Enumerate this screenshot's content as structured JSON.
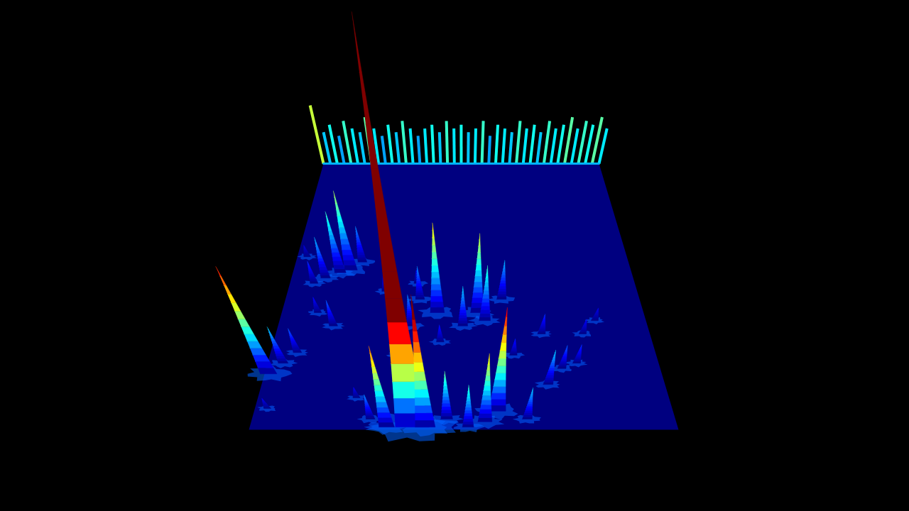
{
  "chart_data": {
    "type": "surface3d",
    "tick_labels": false,
    "xlim": [
      0,
      1
    ],
    "ylim": [
      0,
      1
    ],
    "zlim": [
      0,
      1
    ],
    "color_range": [
      0,
      0.45
    ],
    "peaks": [
      {
        "x": 0.38,
        "y": 0.01,
        "z": 1.0
      },
      {
        "x": 0.01,
        "y": 0.21,
        "z": 0.39
      },
      {
        "x": 0.04,
        "y": 0.25,
        "z": 0.15
      },
      {
        "x": 0.07,
        "y": 0.29,
        "z": 0.1
      },
      {
        "x": 0.17,
        "y": 0.6,
        "z": 0.25
      },
      {
        "x": 0.14,
        "y": 0.59,
        "z": 0.2
      },
      {
        "x": 0.1,
        "y": 0.57,
        "z": 0.14
      },
      {
        "x": 0.2,
        "y": 0.63,
        "z": 0.12
      },
      {
        "x": 0.07,
        "y": 0.55,
        "z": 0.08
      },
      {
        "x": 0.15,
        "y": 0.39,
        "z": 0.1
      },
      {
        "x": 0.43,
        "y": 0.44,
        "z": 0.3
      },
      {
        "x": 0.54,
        "y": 0.44,
        "z": 0.27
      },
      {
        "x": 0.56,
        "y": 0.41,
        "z": 0.2
      },
      {
        "x": 0.61,
        "y": 0.49,
        "z": 0.14
      },
      {
        "x": 0.36,
        "y": 0.39,
        "z": 0.12
      },
      {
        "x": 0.32,
        "y": 0.01,
        "z": 0.35
      },
      {
        "x": 0.41,
        "y": 0.01,
        "z": 0.51
      },
      {
        "x": 0.58,
        "y": 0.07,
        "z": 0.41
      },
      {
        "x": 0.55,
        "y": 0.03,
        "z": 0.3
      },
      {
        "x": 0.65,
        "y": 0.04,
        "z": 0.15
      },
      {
        "x": 0.51,
        "y": 0.01,
        "z": 0.2
      },
      {
        "x": 0.46,
        "y": 0.04,
        "z": 0.22
      },
      {
        "x": 0.71,
        "y": 0.17,
        "z": 0.15
      },
      {
        "x": 0.75,
        "y": 0.23,
        "z": 0.1
      },
      {
        "x": 0.79,
        "y": 0.25,
        "z": 0.08
      },
      {
        "x": 0.28,
        "y": 0.04,
        "z": 0.12
      },
      {
        "x": 0.38,
        "y": 0.49,
        "z": 0.12
      },
      {
        "x": 0.5,
        "y": 0.39,
        "z": 0.15
      },
      {
        "x": 0.71,
        "y": 0.36,
        "z": 0.08
      },
      {
        "x": 0.82,
        "y": 0.36,
        "z": 0.06
      },
      {
        "x": 0.86,
        "y": 0.41,
        "z": 0.05
      },
      {
        "x": 0.44,
        "y": 0.33,
        "z": 0.07
      },
      {
        "x": 0.33,
        "y": 0.28,
        "z": 0.08
      },
      {
        "x": 0.63,
        "y": 0.28,
        "z": 0.07
      },
      {
        "x": 0.24,
        "y": 0.12,
        "z": 0.05
      },
      {
        "x": 0.03,
        "y": 0.08,
        "z": 0.05
      },
      {
        "x": 0.1,
        "y": 0.44,
        "z": 0.06
      },
      {
        "x": 0.03,
        "y": 0.65,
        "z": 0.04
      },
      {
        "x": 0.28,
        "y": 0.52,
        "z": 0.06
      },
      {
        "x": 0.37,
        "y": 0.55,
        "z": 0.05
      }
    ],
    "back_profile": {
      "x": [
        0,
        0.025,
        0.05,
        0.075,
        0.1,
        0.125,
        0.15,
        0.175,
        0.2,
        0.225,
        0.25,
        0.275,
        0.3,
        0.325,
        0.35,
        0.375,
        0.4,
        0.425,
        0.45,
        0.475,
        0.5,
        0.525,
        0.55,
        0.575,
        0.6,
        0.625,
        0.65,
        0.675,
        0.7,
        0.725,
        0.75,
        0.775,
        0.8,
        0.825,
        0.85,
        0.875,
        0.9,
        0.925,
        0.95,
        0.975,
        1
      ],
      "z": [
        0.16,
        0.09,
        0.11,
        0.08,
        0.12,
        0.1,
        0.09,
        0.13,
        0.1,
        0.08,
        0.11,
        0.09,
        0.12,
        0.1,
        0.08,
        0.1,
        0.11,
        0.09,
        0.12,
        0.1,
        0.11,
        0.09,
        0.1,
        0.12,
        0.08,
        0.11,
        0.1,
        0.09,
        0.12,
        0.1,
        0.11,
        0.09,
        0.12,
        0.1,
        0.11,
        0.13,
        0.1,
        0.12,
        0.11,
        0.13,
        0.1
      ]
    }
  }
}
